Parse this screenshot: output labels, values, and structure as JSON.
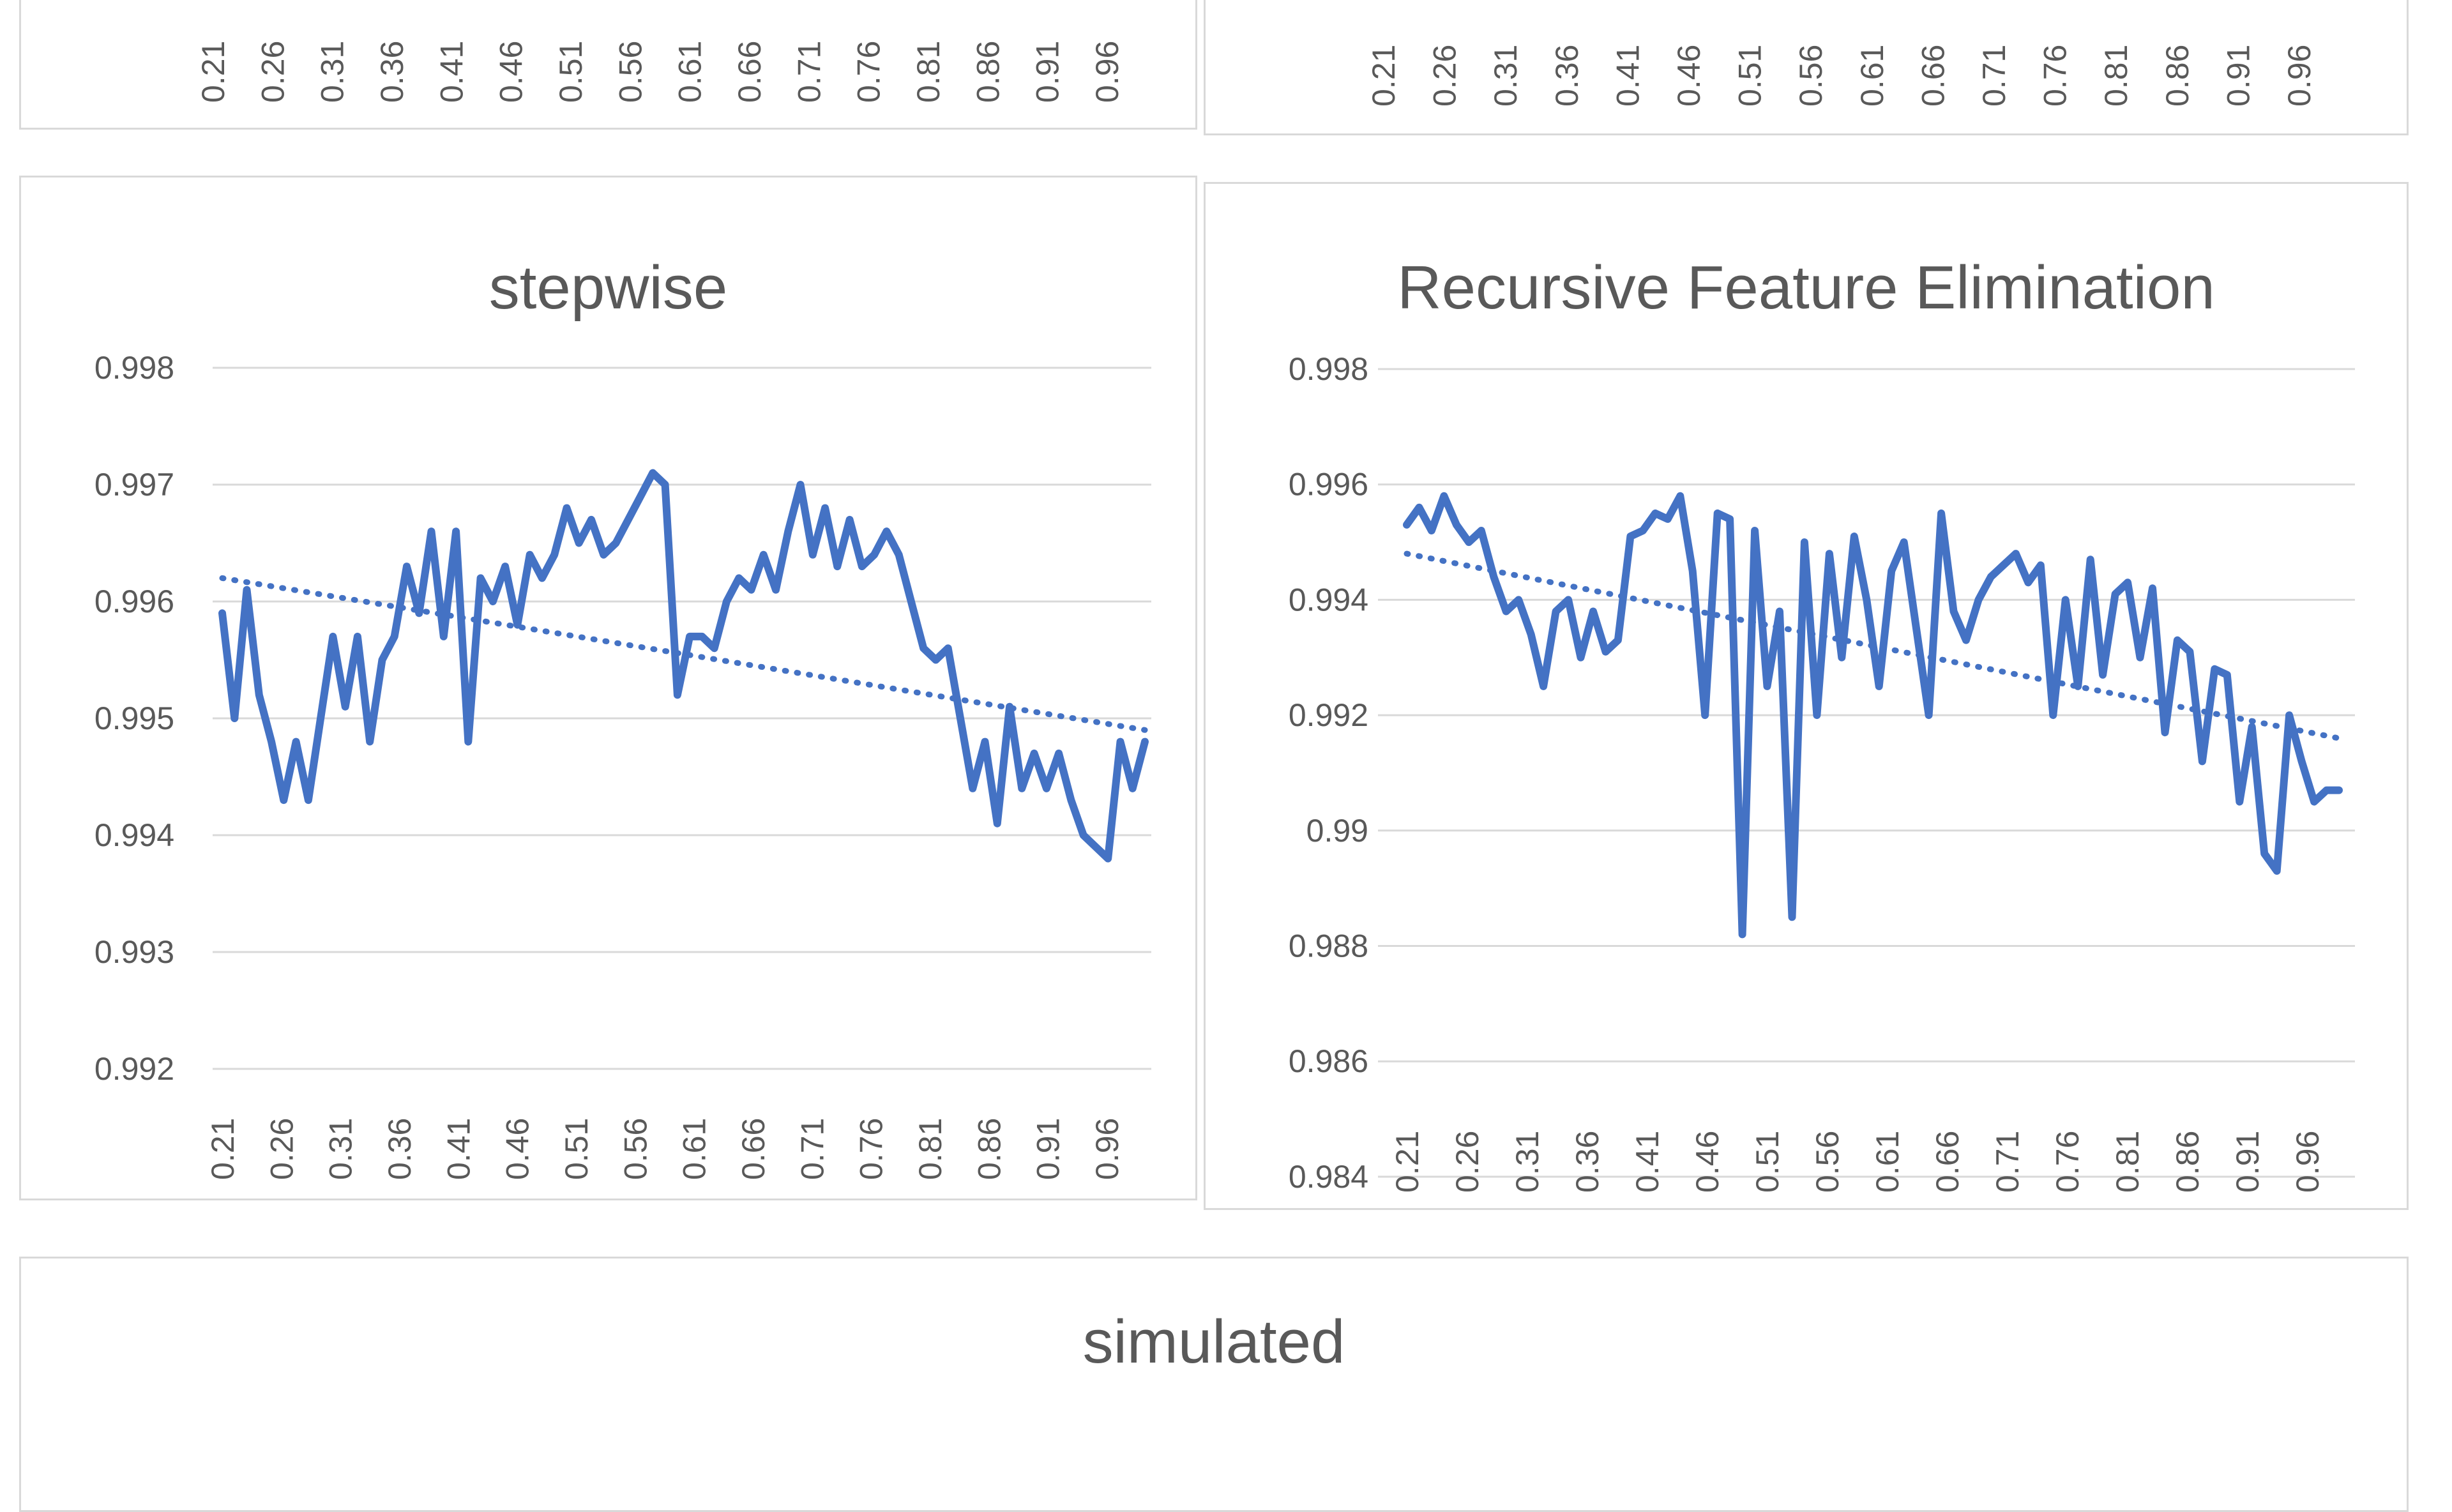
{
  "colors": {
    "series_line": "#4472C4",
    "trendline": "#4472C4",
    "gridline": "#D9D9D9",
    "panel_border": "#D9D9D9",
    "text": "#595959",
    "background": "#FFFFFF"
  },
  "chart_data": [
    {
      "position": "top-left",
      "type": "line",
      "cropped": true,
      "visible": "only bottom edge of panel: rotated x-axis tick labels",
      "x_tick_labels": [
        "0.21",
        "0.26",
        "0.31",
        "0.36",
        "0.41",
        "0.46",
        "0.51",
        "0.56",
        "0.61",
        "0.66",
        "0.71",
        "0.76",
        "0.81",
        "0.86",
        "0.91",
        "0.96"
      ]
    },
    {
      "position": "top-right",
      "type": "line",
      "cropped": true,
      "visible": "only bottom edge of panel: rotated x-axis tick labels",
      "x_tick_labels": [
        "0.21",
        "0.26",
        "0.31",
        "0.36",
        "0.41",
        "0.46",
        "0.51",
        "0.56",
        "0.61",
        "0.66",
        "0.71",
        "0.76",
        "0.81",
        "0.86",
        "0.91",
        "0.96"
      ]
    },
    {
      "position": "middle-left",
      "type": "line",
      "title": "stepwise",
      "grid": "horizontal",
      "legend": "none",
      "x_start": 0.21,
      "x_step": 0.01,
      "x_end": 0.96,
      "x_tick_labels": [
        "0.21",
        "0.26",
        "0.31",
        "0.36",
        "0.41",
        "0.46",
        "0.51",
        "0.56",
        "0.61",
        "0.66",
        "0.71",
        "0.76",
        "0.81",
        "0.86",
        "0.91",
        "0.96"
      ],
      "ylim": [
        0.992,
        0.998
      ],
      "ytick_step": 0.001,
      "ytick_labels": [
        "0.998",
        "0.997",
        "0.996",
        "0.995",
        "0.994",
        "0.993",
        "0.992"
      ],
      "values": [
        0.9959,
        0.995,
        0.9961,
        0.9952,
        0.9948,
        0.9943,
        0.9948,
        0.9943,
        0.995,
        0.9957,
        0.9951,
        0.9957,
        0.9948,
        0.9955,
        0.9957,
        0.9963,
        0.9959,
        0.9966,
        0.9957,
        0.9966,
        0.9948,
        0.9962,
        0.996,
        0.9963,
        0.9958,
        0.9964,
        0.9962,
        0.9964,
        0.9968,
        0.9965,
        0.9967,
        0.9964,
        0.9965,
        0.9967,
        0.9969,
        0.9971,
        0.997,
        0.9952,
        0.9957,
        0.9957,
        0.9956,
        0.996,
        0.9962,
        0.9961,
        0.9964,
        0.9961,
        0.9966,
        0.997,
        0.9964,
        0.9968,
        0.9963,
        0.9967,
        0.9963,
        0.9964,
        0.9966,
        0.9964,
        0.996,
        0.9956,
        0.9955,
        0.9956,
        0.995,
        0.9944,
        0.9948,
        0.9941,
        0.9951,
        0.9944,
        0.9947,
        0.9944,
        0.9947,
        0.9943,
        0.994,
        0.9939,
        0.9938,
        0.9948,
        0.9944,
        0.9948
      ],
      "trendline": {
        "type": "linear",
        "style": "dotted",
        "start_value": 0.9962,
        "end_value": 0.9949
      }
    },
    {
      "position": "middle-right",
      "type": "line",
      "title": "Recursive Feature Elimination",
      "grid": "horizontal",
      "legend": "none",
      "x_start": 0.21,
      "x_step": 0.01,
      "x_end": 0.96,
      "x_tick_labels": [
        "0.21",
        "0.26",
        "0.31",
        "0.36",
        "0.41",
        "0.46",
        "0.51",
        "0.56",
        "0.61",
        "0.66",
        "0.71",
        "0.76",
        "0.81",
        "0.86",
        "0.91",
        "0.96"
      ],
      "ylim": [
        0.984,
        0.998
      ],
      "ytick_step": 0.002,
      "ytick_labels": [
        "0.998",
        "0.996",
        "0.994",
        "0.992",
        "0.99",
        "0.988",
        "0.986",
        "0.984"
      ],
      "values": [
        0.9953,
        0.9956,
        0.9952,
        0.9958,
        0.9953,
        0.995,
        0.9952,
        0.9944,
        0.9938,
        0.994,
        0.9934,
        0.9925,
        0.9938,
        0.994,
        0.993,
        0.9938,
        0.9931,
        0.9933,
        0.9951,
        0.9952,
        0.9955,
        0.9954,
        0.9958,
        0.9945,
        0.992,
        0.9955,
        0.9954,
        0.9882,
        0.9952,
        0.9925,
        0.9938,
        0.9885,
        0.995,
        0.992,
        0.9948,
        0.993,
        0.9951,
        0.994,
        0.9925,
        0.9945,
        0.995,
        0.9935,
        0.992,
        0.9955,
        0.9938,
        0.9933,
        0.994,
        0.9944,
        0.9946,
        0.9948,
        0.9943,
        0.9946,
        0.992,
        0.994,
        0.9925,
        0.9947,
        0.9927,
        0.9941,
        0.9943,
        0.993,
        0.9942,
        0.9917,
        0.9933,
        0.9931,
        0.9912,
        0.9928,
        0.9927,
        0.9905,
        0.9918,
        0.9896,
        0.9893,
        0.992,
        0.9912,
        0.9905,
        0.9907,
        0.9907
      ],
      "trendline": {
        "type": "linear",
        "style": "dotted",
        "start_value": 0.9948,
        "end_value": 0.9916
      }
    },
    {
      "position": "bottom",
      "type": "line",
      "title": "simulated",
      "cropped": true,
      "visible": "only top edge of panel: chart title"
    }
  ]
}
